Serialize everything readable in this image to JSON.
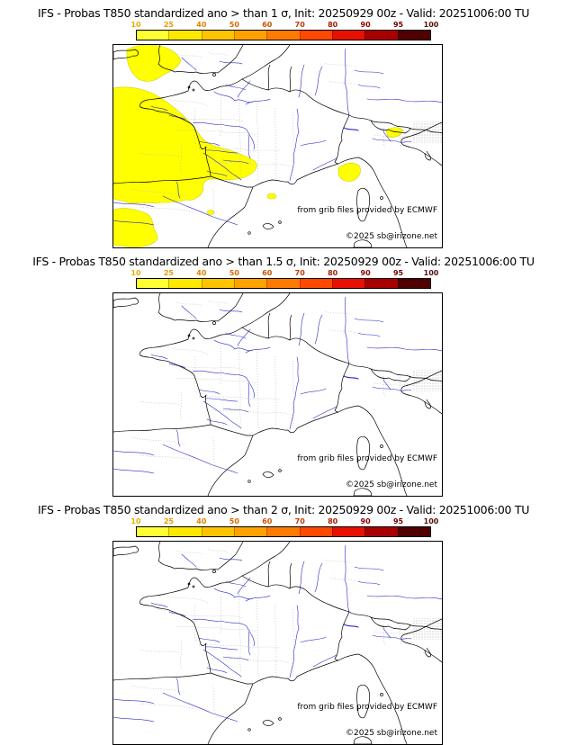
{
  "page": {
    "background": "#ffffff"
  },
  "panels": [
    {
      "id": "sigma-1",
      "title": "IFS - Probas T850  standardized ano > than 1 σ, Init: 20250929 00z - Valid: 20251006:00 TU",
      "threshold_sigma": "1",
      "credit": "from grib files provided by ECMWF",
      "copyright": "©2025 sb@irizone.net",
      "has_probability_shading": true,
      "shading_color": "#ffff00",
      "shading_note": "10-25% band over Celtic Sea, Bay of Biscay, western and southwestern France, northern Spain, Gulf of Genoa and small NE Italy patch"
    },
    {
      "id": "sigma-1.5",
      "title": "IFS - Probas T850  standardized ano > than 1.5 σ, Init: 20250929 00z - Valid: 20251006:00 TU",
      "threshold_sigma": "1.5",
      "credit": "from grib files provided by ECMWF",
      "copyright": "©2025 sb@irizone.net",
      "has_probability_shading": false,
      "shading_color": null,
      "shading_note": "no shaded probability areas"
    },
    {
      "id": "sigma-2",
      "title": "IFS - Probas T850  standardized ano > than 2 σ, Init: 20250929 00z - Valid: 20251006:00 TU",
      "threshold_sigma": "2",
      "credit": "from grib files provided by ECMWF",
      "copyright": "©2025 sb@irizone.net",
      "has_probability_shading": false,
      "shading_color": null,
      "shading_note": "no shaded probability areas"
    }
  ],
  "colorbar": {
    "unit": "%",
    "ticks": [
      "10",
      "25",
      "40",
      "50",
      "60",
      "70",
      "80",
      "90",
      "95",
      "100"
    ],
    "tick_colors": [
      "#e0b000",
      "#e89800",
      "#e08200",
      "#d86a00",
      "#cc5200",
      "#c03a00",
      "#aa1e00",
      "#8e0000",
      "#700000",
      "#501010"
    ],
    "segment_colors": [
      "#ffff33",
      "#ffe800",
      "#ffc400",
      "#ffa200",
      "#ff7b00",
      "#ff4800",
      "#e81000",
      "#a80000",
      "#500000"
    ]
  },
  "map": {
    "region": "France / Western Europe",
    "coastline_color": "#000000",
    "river_color": "#2929c8",
    "admin_boundary_color": "#b4b4b4"
  }
}
